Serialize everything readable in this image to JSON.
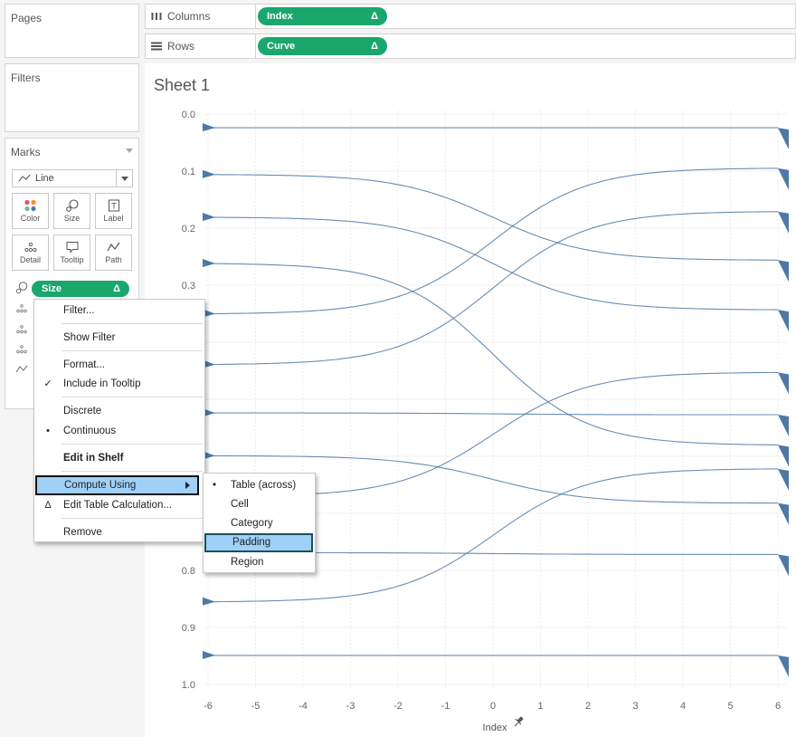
{
  "left_pane": {
    "pages_title": "Pages",
    "filters_title": "Filters",
    "marks_title": "Marks",
    "mark_type": "Line",
    "buttons": [
      "Color",
      "Size",
      "Label",
      "Detail",
      "Tooltip",
      "Path"
    ],
    "size_pill": "Size",
    "pill_delta": "Δ"
  },
  "shelves": {
    "columns_label": "Columns",
    "columns_pill": "Index",
    "rows_label": "Rows",
    "rows_pill": "Curve"
  },
  "sheet": {
    "title": "Sheet 1"
  },
  "colors": {
    "pill_green": "#1aa76b",
    "curve": "#4e79a7",
    "highlight": "#9fd0f8"
  },
  "context_menu": {
    "items": [
      {
        "label": "Filter..."
      },
      {
        "label": "Show Filter"
      },
      {
        "label": "Format..."
      },
      {
        "label": "Include in Tooltip",
        "mark": "✓"
      },
      {
        "label": "Discrete"
      },
      {
        "label": "Continuous",
        "mark": "•"
      },
      {
        "label": "Edit in Shelf"
      },
      {
        "label": "Compute Using"
      },
      {
        "label": "Edit Table Calculation...",
        "mark": "Δ"
      },
      {
        "label": "Remove"
      }
    ]
  },
  "submenu": {
    "items": [
      {
        "label": "Table (across)",
        "mark": "•"
      },
      {
        "label": "Cell"
      },
      {
        "label": "Category"
      },
      {
        "label": "Padding"
      },
      {
        "label": "Region"
      }
    ]
  },
  "chart_data": {
    "type": "line",
    "xlabel": "Index",
    "ylabel": "",
    "xlim": [
      -6,
      6
    ],
    "ylim": [
      1.0,
      0.0
    ],
    "x_ticks": [
      "-6",
      "-5",
      "-4",
      "-3",
      "-2",
      "-1",
      "0",
      "1",
      "2",
      "3",
      "4",
      "5",
      "6"
    ],
    "y_ticks": [
      "0.0",
      "0.1",
      "0.2",
      "0.3",
      "0.4",
      "0.5",
      "0.6",
      "0.7",
      "0.8",
      "0.9",
      "1.0"
    ],
    "series": [
      {
        "start": 0.024,
        "end": 0.024
      },
      {
        "start": 0.106,
        "end": 0.256
      },
      {
        "start": 0.181,
        "end": 0.343
      },
      {
        "start": 0.262,
        "end": 0.58
      },
      {
        "start": 0.35,
        "end": 0.095
      },
      {
        "start": 0.439,
        "end": 0.171
      },
      {
        "start": 0.524,
        "end": 0.527
      },
      {
        "start": 0.599,
        "end": 0.682
      },
      {
        "start": 0.67,
        "end": 0.453
      },
      {
        "start": 0.769,
        "end": 0.772
      },
      {
        "start": 0.855,
        "end": 0.622
      },
      {
        "start": 0.949,
        "end": 0.949
      }
    ]
  }
}
